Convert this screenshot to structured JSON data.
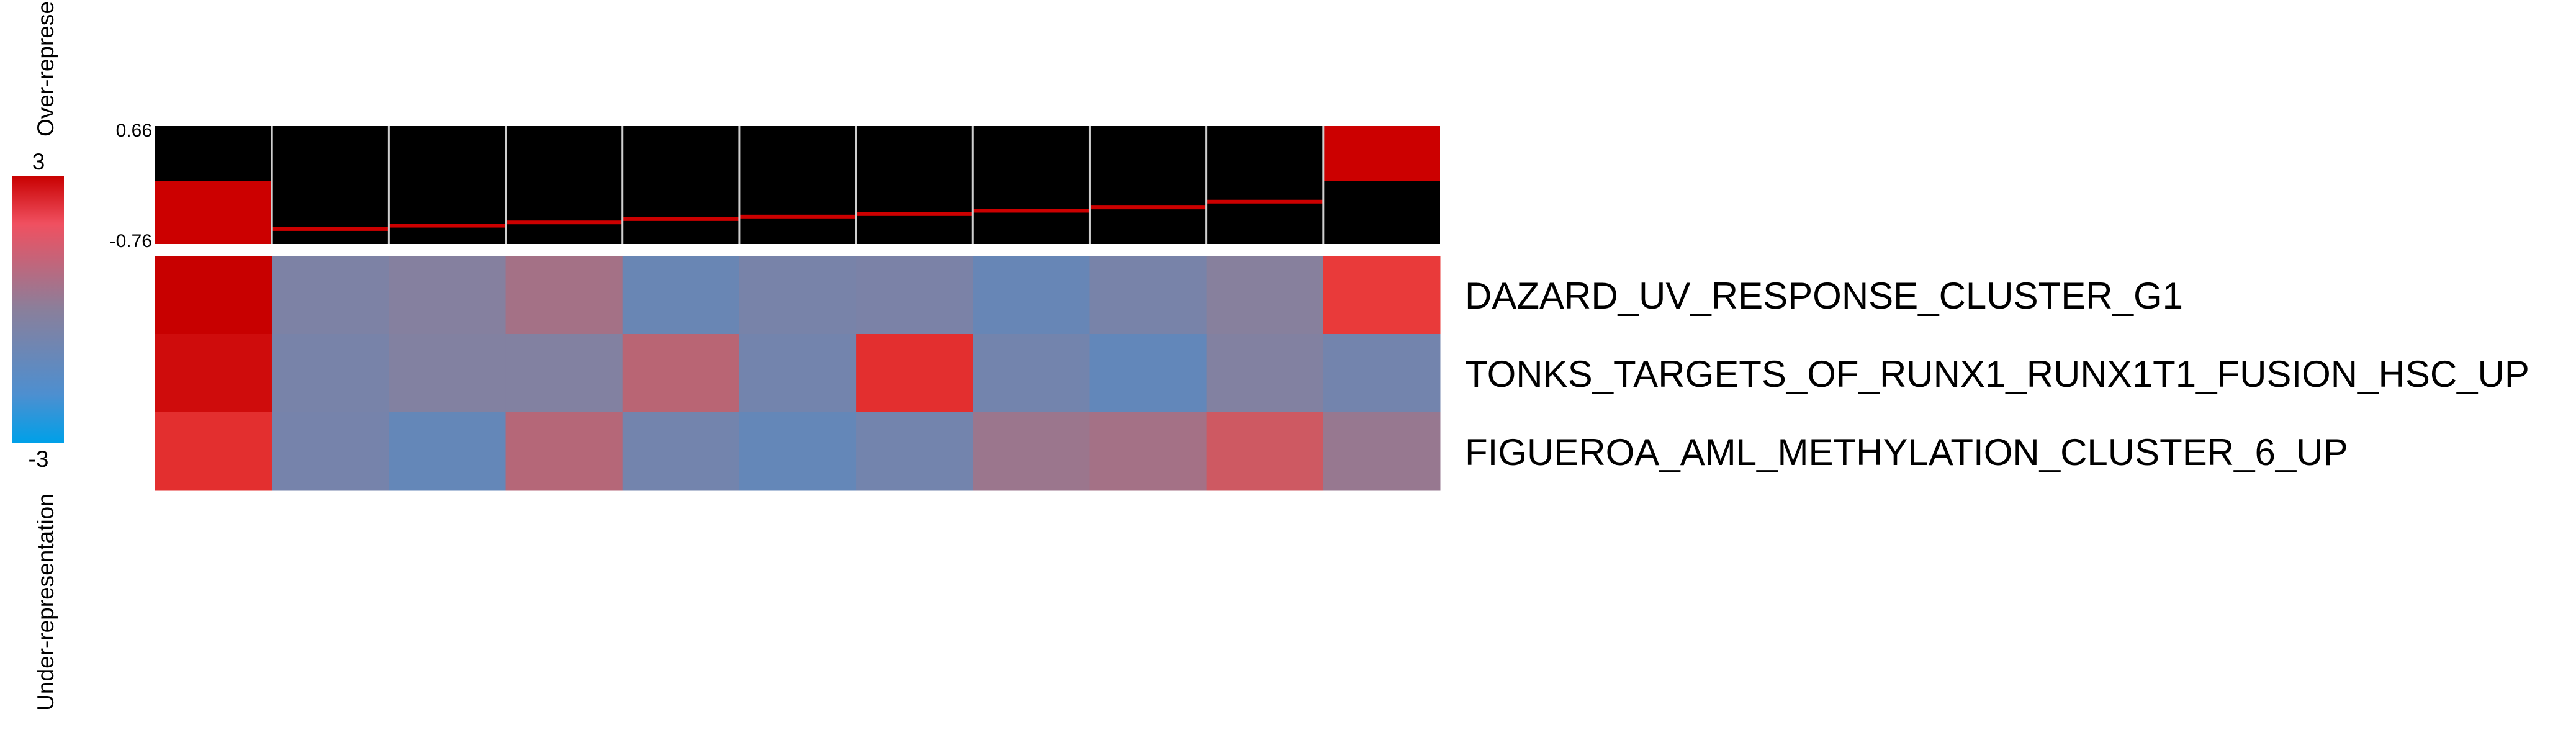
{
  "chart_data": {
    "type": "heatmap",
    "legend": {
      "max_label": "3",
      "min_label": "-3",
      "over_label": "Over-represe",
      "under_label": "Under-representation",
      "range": [
        -3,
        3
      ]
    },
    "summary": {
      "max_label": "0.66",
      "min_label": "-0.76",
      "range": [
        -0.76,
        0.66
      ],
      "values": [
        -0.76,
        -0.58,
        -0.54,
        -0.5,
        -0.46,
        -0.43,
        -0.4,
        -0.36,
        -0.32,
        -0.25,
        0.66
      ]
    },
    "rows": [
      {
        "label": "DAZARD_UV_RESPONSE_CLUSTER_G1",
        "values": [
          3,
          -0.5,
          -0.2,
          0.6,
          -1.3,
          -0.7,
          -0.6,
          -1.4,
          -0.7,
          -0.1,
          2.5
        ]
      },
      {
        "label": "TONKS_TARGETS_OF_RUNX1_RUNX1T1_FUSION_HSC_UP",
        "values": [
          2.9,
          -0.7,
          -0.3,
          -0.3,
          1.1,
          -0.9,
          2.6,
          -0.9,
          -1.6,
          -0.3,
          -0.9
        ]
      },
      {
        "label": "FIGUEROA_AML_METHYLATION_CLUSTER_6_UP",
        "values": [
          2.6,
          -0.8,
          -1.5,
          1.0,
          -0.9,
          -1.5,
          -0.9,
          0.4,
          0.6,
          1.6,
          0.3
        ]
      }
    ],
    "colors": {
      "high": "#c80000",
      "mid": "#8a7f9b",
      "low": "#00a0e8",
      "summary_bg": "#000000",
      "summary_bar": "#cc0000",
      "separator": "#cfcfcf"
    }
  }
}
